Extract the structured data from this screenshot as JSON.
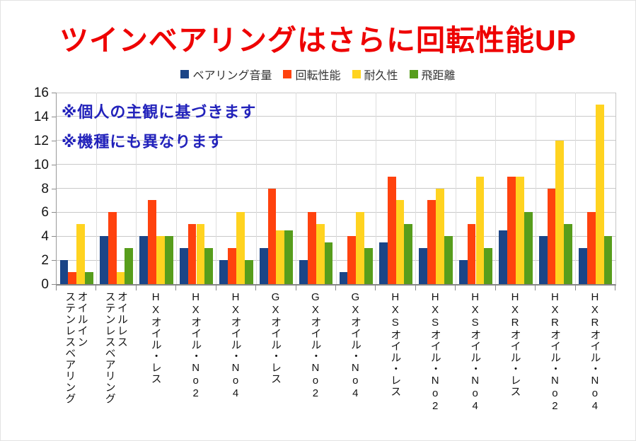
{
  "title": {
    "text": "ツインベアリングはさらに回転性能UP",
    "color": "#ee0000"
  },
  "annotations": {
    "line1": "※個人の主観に基づきます",
    "line2": "※機種にも異なります",
    "color": "#2222bb"
  },
  "legend": [
    {
      "label": "ベアリング音量",
      "color": "#1b4587"
    },
    {
      "label": "回転性能",
      "color": "#ff420e"
    },
    {
      "label": "耐久性",
      "color": "#ffd320"
    },
    {
      "label": "飛距離",
      "color": "#579d1c"
    }
  ],
  "chart_data": {
    "type": "bar",
    "title": "ツインベアリングはさらに回転性能UP",
    "categories": [
      "オイルイン\nステンレスベアリング",
      "オイルレス\nステンレスベアリング",
      "HXオイル・レス",
      "HXオイル・No2",
      "HXオイル・No4",
      "GXオイル・レス",
      "GXオイル・No2",
      "GXオイル・No4",
      "HXSオイル・レス",
      "HXSオイル・No2",
      "HXSオイル・No4",
      "HXRオイル・レス",
      "HXRオイル・No2",
      "HXRオイル・No4"
    ],
    "series": [
      {
        "name": "ベアリング音量",
        "color": "#1b4587",
        "values": [
          2,
          4,
          4,
          3,
          2,
          3,
          2,
          1,
          3.5,
          3,
          2,
          4.5,
          4,
          3
        ]
      },
      {
        "name": "回転性能",
        "color": "#ff420e",
        "values": [
          1,
          6,
          7,
          5,
          3,
          8,
          6,
          4,
          9,
          7,
          5,
          9,
          8,
          6
        ]
      },
      {
        "name": "耐久性",
        "color": "#ffd320",
        "values": [
          5,
          1,
          4,
          5,
          6,
          4.5,
          5,
          6,
          7,
          8,
          9,
          9,
          12,
          15
        ]
      },
      {
        "name": "飛距離",
        "color": "#579d1c",
        "values": [
          1,
          3,
          4,
          3,
          2,
          4.5,
          3.5,
          3,
          5,
          4,
          3,
          6,
          5,
          4
        ]
      }
    ],
    "xlabel": "",
    "ylabel": "",
    "ylim": [
      0,
      16
    ],
    "ytick_step": 2,
    "grid": true,
    "legend_position": "top"
  }
}
